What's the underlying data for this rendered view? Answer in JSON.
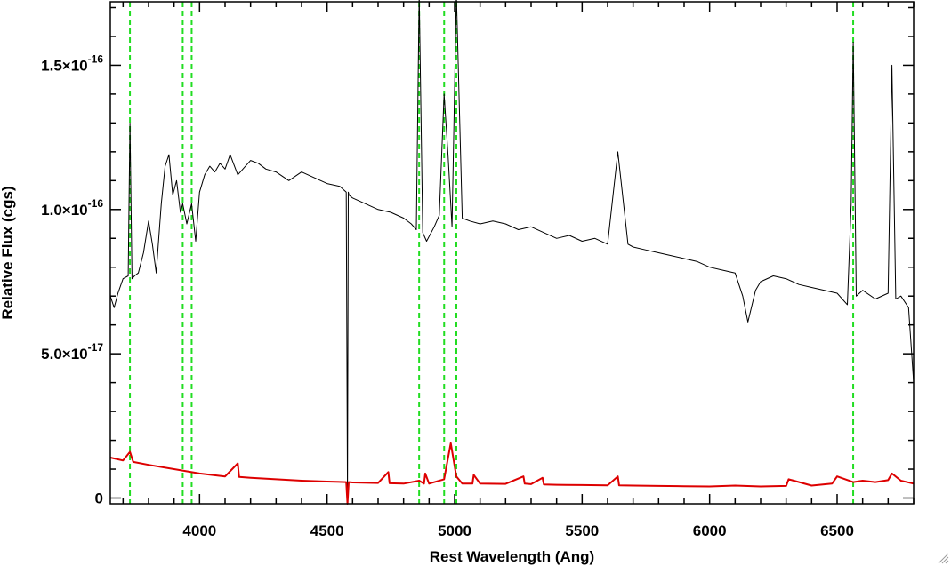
{
  "chart_data": {
    "type": "line",
    "title": "",
    "xlabel": "Rest Wavelength (Ang)",
    "ylabel": "Relative Flux (cgs)",
    "xlim": [
      3650,
      6800
    ],
    "ylim": [
      -2e-18,
      1.72e-16
    ],
    "x_ticks": [
      {
        "value": 4000,
        "label": "4000"
      },
      {
        "value": 4500,
        "label": "4500"
      },
      {
        "value": 5000,
        "label": "5000"
      },
      {
        "value": 5500,
        "label": "5500"
      },
      {
        "value": 6000,
        "label": "6000"
      },
      {
        "value": 6500,
        "label": "6500"
      }
    ],
    "y_ticks": [
      {
        "value": 0,
        "mant": "0",
        "exp": ""
      },
      {
        "value": 5e-17,
        "mant": "5.0×10",
        "exp": "-17"
      },
      {
        "value": 1e-16,
        "mant": "1.0×10",
        "exp": "-16"
      },
      {
        "value": 1.5e-16,
        "mant": "1.5×10",
        "exp": "-16"
      }
    ],
    "grid": false,
    "legend": "none",
    "vertical_lines": {
      "color": "#22dd22",
      "style": "dashed",
      "x": [
        3727,
        3934,
        3969,
        4861,
        4959,
        5007,
        6563
      ]
    },
    "series": [
      {
        "color": "#000000",
        "x": [
          3650,
          3665,
          3680,
          3700,
          3720,
          3727,
          3735,
          3745,
          3760,
          3780,
          3800,
          3815,
          3830,
          3850,
          3865,
          3880,
          3895,
          3910,
          3925,
          3934,
          3950,
          3969,
          3985,
          4000,
          4020,
          4040,
          4060,
          4080,
          4100,
          4120,
          4150,
          4180,
          4200,
          4230,
          4260,
          4300,
          4350,
          4400,
          4450,
          4500,
          4550,
          4575,
          4580,
          4583,
          4586,
          4600,
          4650,
          4700,
          4750,
          4800,
          4830,
          4850,
          4861,
          4875,
          4890,
          4920,
          4940,
          4959,
          4975,
          4990,
          5007,
          5030,
          5060,
          5100,
          5150,
          5200,
          5250,
          5300,
          5350,
          5400,
          5450,
          5500,
          5550,
          5600,
          5640,
          5680,
          5700,
          5750,
          5800,
          5850,
          5900,
          5950,
          6000,
          6050,
          6100,
          6130,
          6150,
          6180,
          6200,
          6250,
          6300,
          6350,
          6400,
          6450,
          6500,
          6540,
          6555,
          6563,
          6575,
          6600,
          6650,
          6700,
          6715,
          6730,
          6750,
          6780,
          6800
        ],
        "y": [
          7e-17,
          6.6e-17,
          7.1e-17,
          7.6e-17,
          7.7e-17,
          1.3e-16,
          7.6e-17,
          7.7e-17,
          7.8e-17,
          8.5e-17,
          9.6e-17,
          8.8e-17,
          7.8e-17,
          1.02e-16,
          1.15e-16,
          1.19e-16,
          1.05e-16,
          1.1e-16,
          9.9e-17,
          1.02e-16,
          9.5e-17,
          1.02e-16,
          8.9e-17,
          1.06e-16,
          1.12e-16,
          1.15e-16,
          1.13e-16,
          1.16e-16,
          1.14e-16,
          1.19e-16,
          1.12e-16,
          1.15e-16,
          1.17e-16,
          1.16e-16,
          1.14e-16,
          1.13e-16,
          1.1e-16,
          1.13e-16,
          1.11e-16,
          1.09e-16,
          1.08e-16,
          1.06e-16,
          1e-18,
          1.06e-16,
          1.05e-16,
          1.04e-16,
          1.02e-16,
          1e-16,
          9.9e-17,
          9.7e-17,
          9.5e-17,
          9.3e-17,
          1.75e-16,
          9.2e-17,
          8.9e-17,
          9.4e-17,
          9.8e-17,
          1.4e-16,
          1.18e-16,
          9.4e-17,
          1.75e-16,
          9.7e-17,
          9.6e-17,
          9.5e-17,
          9.6e-17,
          9.5e-17,
          9.3e-17,
          9.4e-17,
          9.2e-17,
          9e-17,
          9.1e-17,
          8.9e-17,
          9e-17,
          8.8e-17,
          1.2e-16,
          8.8e-17,
          8.7e-17,
          8.6e-17,
          8.5e-17,
          8.4e-17,
          8.3e-17,
          8.2e-17,
          8e-17,
          7.9e-17,
          7.8e-17,
          7e-17,
          6.1e-17,
          7.2e-17,
          7.5e-17,
          7.7e-17,
          7.6e-17,
          7.4e-17,
          7.3e-17,
          7.2e-17,
          7.1e-17,
          6.7e-17,
          1.02e-16,
          1.58e-16,
          7e-17,
          7.2e-17,
          6.9e-17,
          7.1e-17,
          1.5e-16,
          6.9e-17,
          7e-17,
          6.6e-17,
          4e-17
        ]
      },
      {
        "color": "#dd0000",
        "x": [
          3650,
          3700,
          3727,
          3740,
          3800,
          3900,
          4000,
          4100,
          4150,
          4155,
          4200,
          4300,
          4400,
          4500,
          4575,
          4580,
          4585,
          4600,
          4700,
          4740,
          4745,
          4800,
          4861,
          4880,
          4885,
          4900,
          4959,
          4985,
          5007,
          5030,
          5070,
          5075,
          5100,
          5200,
          5270,
          5275,
          5300,
          5345,
          5350,
          5400,
          5500,
          5600,
          5640,
          5645,
          5700,
          5800,
          5900,
          6000,
          6100,
          6200,
          6300,
          6310,
          6400,
          6480,
          6500,
          6563,
          6600,
          6650,
          6700,
          6715,
          6750,
          6800
        ],
        "y": [
          1.4e-17,
          1.3e-17,
          1.6e-17,
          1.25e-17,
          1.15e-17,
          1e-17,
          8.5e-18,
          7.5e-18,
          1.2e-17,
          7.3e-18,
          7e-18,
          6.5e-18,
          6e-18,
          5.7e-18,
          5.5e-18,
          -2e-18,
          5.5e-18,
          5.4e-18,
          5.2e-18,
          9e-18,
          5.1e-18,
          5e-18,
          6e-18,
          5e-18,
          8.5e-18,
          5e-18,
          6.5e-18,
          1.9e-17,
          7.5e-18,
          5e-18,
          5e-18,
          8e-18,
          5e-18,
          4.9e-18,
          7.5e-18,
          5e-18,
          4.8e-18,
          7e-18,
          4.7e-18,
          4.6e-18,
          4.5e-18,
          4.4e-18,
          7.5e-18,
          4.4e-18,
          4.3e-18,
          4.2e-18,
          4.1e-18,
          4e-18,
          4.3e-18,
          4e-18,
          4.2e-18,
          6.5e-18,
          4.3e-18,
          5e-18,
          7.5e-18,
          5.5e-18,
          6e-18,
          5.5e-18,
          6.2e-18,
          8.5e-18,
          6e-18,
          5e-18
        ]
      }
    ]
  }
}
